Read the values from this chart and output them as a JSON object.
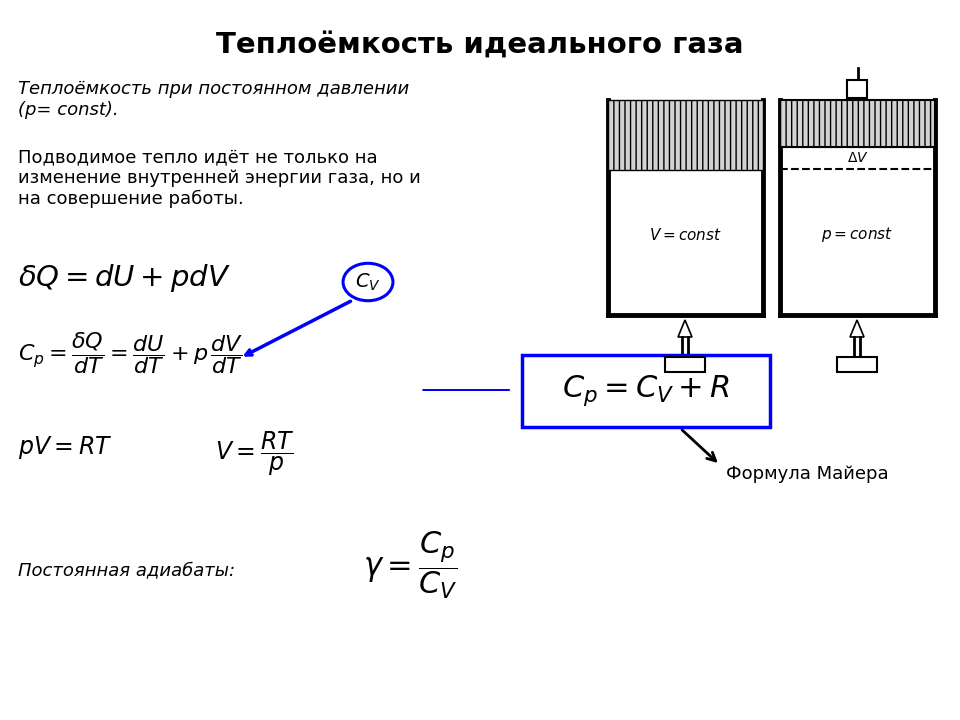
{
  "title": "Теплоёмкость идеального газа",
  "title_fontsize": 21,
  "text1_italic": "Теплоёмкость при постоянном давлении\n(p= const).",
  "text2": "Подводимое тепло идёт не только на\nизменение внутренней энергии газа, но и\nна совершение работы.",
  "formula1": "$\\delta Q=dU+pdV$",
  "formula2": "$C_p=\\dfrac{\\delta Q}{dT}=\\dfrac{dU}{dT}+p\\,\\dfrac{dV}{dT}$",
  "formula3": "$pV=RT$",
  "formula4": "$V=\\dfrac{RT}{p}$",
  "formula_box": "$C_p=C_V+R$",
  "cv_label": "$C_V$",
  "formula_adiabat_label": "Постоянная адиабаты:",
  "formula_adiabat": "$\\gamma=\\dfrac{C_p}{C_V}$",
  "mayer_label": "Формула Майера",
  "bg_color": "#ffffff",
  "text_color": "#000000",
  "box_color": "#0000ff",
  "arrow_color": "#0000ff",
  "circle_color": "#0000ff",
  "label_v_const": "$V=const$",
  "label_p_const": "$p=const$",
  "label_delta_v": "$\\Delta V$"
}
